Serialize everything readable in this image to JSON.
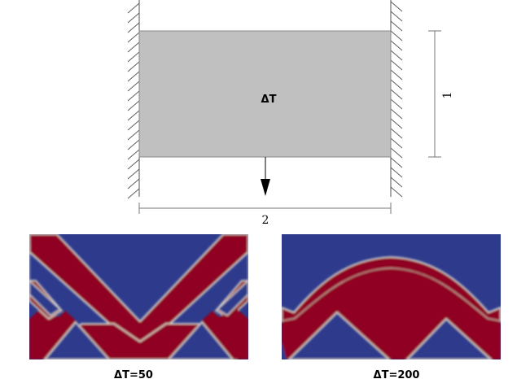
{
  "schematic": {
    "load_label": "ΔT",
    "width_label": "2",
    "height_label": "1",
    "colors": {
      "domain_fill": "#c0c0c0",
      "domain_stroke": "#888888",
      "hatch": "#555555",
      "dimension": "#777777",
      "arrow": "#000000"
    }
  },
  "results": [
    {
      "caption": "ΔT=50"
    },
    {
      "caption": "ΔT=200"
    }
  ],
  "result_colors": {
    "void": "#2e3a8c",
    "solid": "#8f0620",
    "edge": "#e8e4d8"
  }
}
